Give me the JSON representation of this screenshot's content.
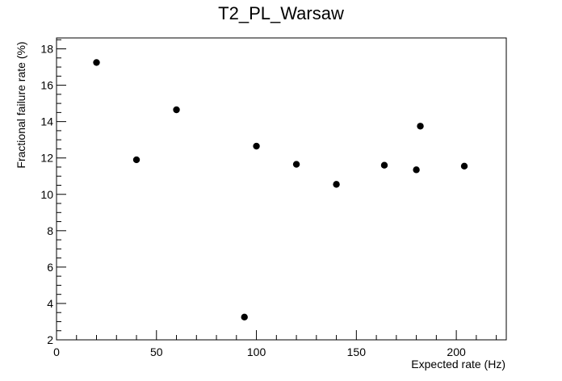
{
  "chart_data": {
    "type": "scatter",
    "title": "T2_PL_Warsaw",
    "xlabel": "Expected rate (Hz)",
    "ylabel": "Fractional failure rate (%)",
    "xlim": [
      0,
      225
    ],
    "ylim": [
      2,
      18.6
    ],
    "x_ticks": [
      "0",
      "50",
      "100",
      "150",
      "200"
    ],
    "y_ticks": [
      "2",
      "4",
      "6",
      "8",
      "10",
      "12",
      "14",
      "16",
      "18"
    ],
    "grid": false,
    "series": [
      {
        "marker_color": "#000000",
        "points": [
          {
            "x": 20,
            "y": 17.25
          },
          {
            "x": 40,
            "y": 11.9
          },
          {
            "x": 60,
            "y": 14.65
          },
          {
            "x": 94,
            "y": 3.25
          },
          {
            "x": 100,
            "y": 12.65
          },
          {
            "x": 120,
            "y": 11.65
          },
          {
            "x": 140,
            "y": 10.55
          },
          {
            "x": 164,
            "y": 11.6
          },
          {
            "x": 180,
            "y": 11.35
          },
          {
            "x": 182,
            "y": 13.75
          },
          {
            "x": 204,
            "y": 11.55
          }
        ]
      }
    ]
  }
}
